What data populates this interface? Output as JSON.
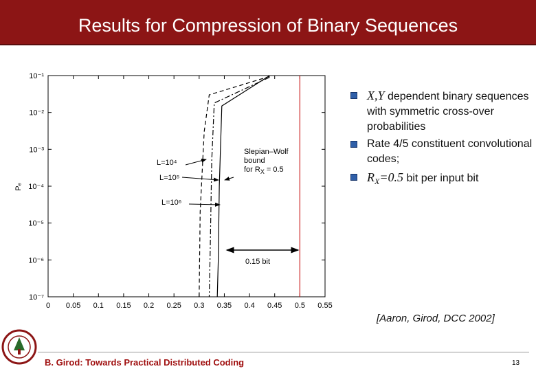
{
  "header": {
    "title": "Results for Compression of Binary Sequences"
  },
  "chart": {
    "type": "line",
    "ylabel": "Pₑ",
    "xlim": [
      0,
      0.55
    ],
    "ylim": [
      1e-07,
      0.1
    ],
    "log_y": true,
    "xticks": [
      0,
      0.05,
      0.1,
      0.15,
      0.2,
      0.25,
      0.3,
      0.35,
      0.4,
      0.45,
      0.5,
      0.55
    ],
    "yticks": [
      {
        "value": 0.1,
        "label": "10⁻¹"
      },
      {
        "value": 0.01,
        "label": "10⁻²"
      },
      {
        "value": 0.001,
        "label": "10⁻³"
      },
      {
        "value": 0.0001,
        "label": "10⁻⁴"
      },
      {
        "value": 1e-05,
        "label": "10⁻⁵"
      },
      {
        "value": 1e-06,
        "label": "10⁻⁶"
      },
      {
        "value": 1e-07,
        "label": "10⁻⁷"
      }
    ],
    "series": [
      {
        "name": "L=10⁴",
        "color": "#000000",
        "dash": "6 4",
        "x": [
          0.44,
          0.32,
          0.31,
          0.302,
          0.3
        ],
        "y": [
          0.095,
          0.03,
          0.003,
          2e-05,
          1e-07
        ]
      },
      {
        "name": "L=10⁵",
        "color": "#000000",
        "dash": "8 3 2 3",
        "x": [
          0.44,
          0.33,
          0.325,
          0.322,
          0.32
        ],
        "y": [
          0.09,
          0.018,
          0.0005,
          2e-06,
          1e-07
        ]
      },
      {
        "name": "L=10⁶",
        "color": "#000000",
        "dash": "",
        "x": [
          0.44,
          0.345,
          0.34,
          0.338,
          0.336
        ],
        "y": [
          0.1,
          0.015,
          0.0001,
          1e-06,
          1e-07
        ]
      }
    ],
    "bound": {
      "x": 0.5,
      "color": "#cc2222",
      "line1": "Slepian–Wolf",
      "line2": "bound",
      "line3": "for R",
      "sub": "X",
      "eq": "= 0.5"
    },
    "gap_label": "0.15 bit"
  },
  "bullets": [
    {
      "math": "X,Y",
      "text": "dependent binary sequences with symmetric cross-over probabilities"
    },
    {
      "text": "Rate 4/5 constituent convolutional codes;"
    },
    {
      "math": "R",
      "sub": "X",
      "math2": "=0.5",
      "text": "bit per input bit"
    }
  ],
  "citation": "[Aaron, Girod, DCC 2002]",
  "footer": {
    "text": "B. Girod: Towards Practical Distributed Coding",
    "page": "13"
  }
}
